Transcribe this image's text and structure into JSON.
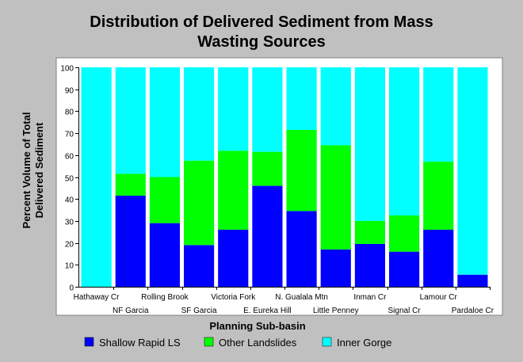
{
  "chart_data": {
    "type": "bar",
    "stacked": true,
    "title_lines": [
      "Distribution of Delivered Sediment from Mass",
      "Wasting Sources"
    ],
    "xlabel": "Planning Sub-basin",
    "ylabel_lines": [
      "Percent Volume of Total",
      "Delivered Sediment"
    ],
    "ylim": [
      0,
      100
    ],
    "yticks": [
      0,
      10,
      20,
      30,
      40,
      50,
      60,
      70,
      80,
      90,
      100
    ],
    "grid": false,
    "legend_position": "bottom",
    "categories": [
      "Hathaway Cr",
      "NF Garcia",
      "Rolling Brook",
      "SF Garcia",
      "Victoria Fork",
      "E. Eureka Hill",
      "N. Gualala Mtn",
      "Little Penney",
      "Inman Cr",
      "Signal Cr",
      "Lamour Cr",
      "Pardaloe Cr"
    ],
    "series": [
      {
        "name": "Shallow Rapid LS",
        "color": "#0000ff",
        "values": [
          0,
          41.5,
          29,
          19,
          26,
          46,
          34.5,
          17,
          19.5,
          16,
          26,
          5.5
        ]
      },
      {
        "name": "Other Landslides",
        "color": "#00ff00",
        "values": [
          0,
          10,
          21,
          38.5,
          36,
          15.5,
          37,
          47.5,
          10.5,
          16.5,
          31,
          0
        ]
      },
      {
        "name": "Inner Gorge",
        "color": "#00ffff",
        "values": [
          100,
          48.5,
          50,
          42.5,
          38,
          38.5,
          28.5,
          35.5,
          70,
          67.5,
          43,
          94.5
        ]
      }
    ]
  }
}
